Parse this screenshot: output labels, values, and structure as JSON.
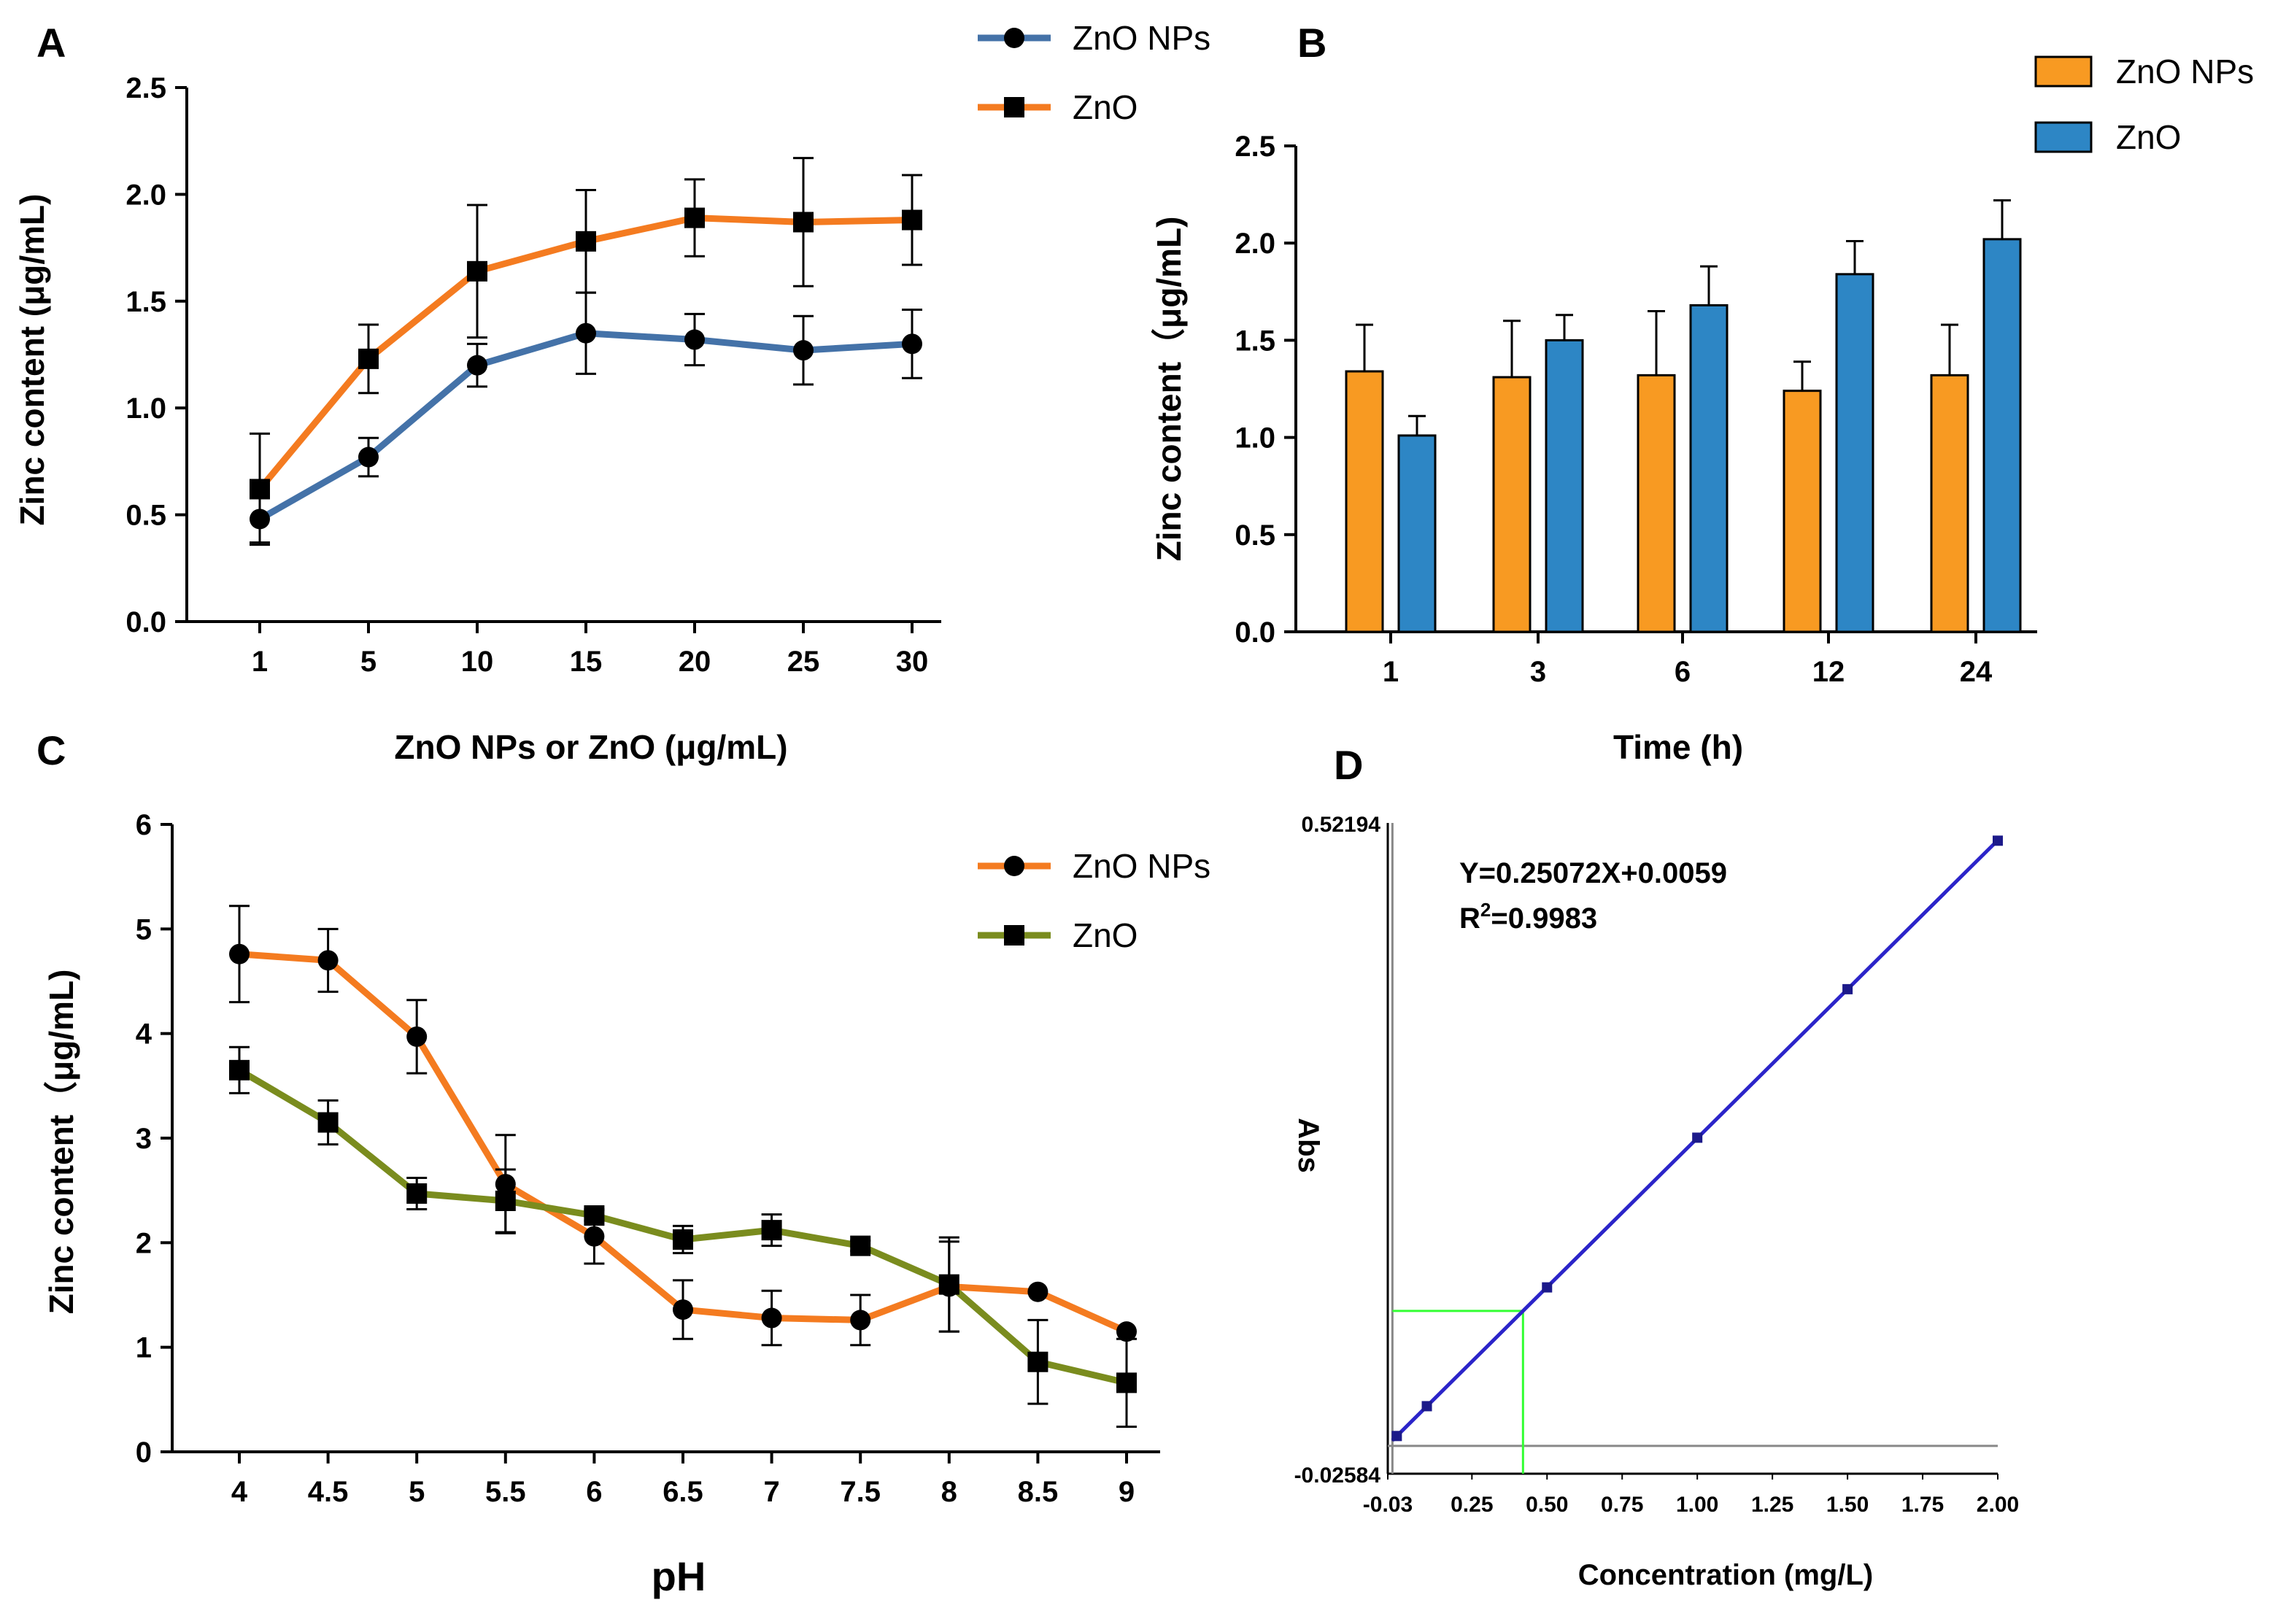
{
  "panels": {
    "A": "A",
    "B": "B",
    "C": "C",
    "D": "D"
  },
  "chart_data": [
    {
      "id": "A",
      "type": "line",
      "categories": [
        "1",
        "5",
        "10",
        "15",
        "20",
        "25",
        "30"
      ],
      "series": [
        {
          "name": "ZnO NPs",
          "color": "#4472a8",
          "marker": "circle",
          "values": [
            0.48,
            0.77,
            1.2,
            1.35,
            1.32,
            1.27,
            1.3
          ],
          "errors": [
            0.11,
            0.09,
            0.1,
            0.19,
            0.12,
            0.16,
            0.16
          ]
        },
        {
          "name": "ZnO",
          "color": "#f47b20",
          "marker": "square",
          "values": [
            0.62,
            1.23,
            1.64,
            1.78,
            1.89,
            1.87,
            1.88
          ],
          "errors": [
            0.26,
            0.16,
            0.31,
            0.24,
            0.18,
            0.3,
            0.21
          ]
        }
      ],
      "xlabel": "ZnO NPs or ZnO (μg/mL)",
      "ylabel": "Zinc content (μg/mL)",
      "ylim": [
        0,
        2.5
      ],
      "yticks": [
        "0.0",
        "0.5",
        "1.0",
        "1.5",
        "2.0",
        "2.5"
      ],
      "legend": "top-right outside"
    },
    {
      "id": "B",
      "type": "bar",
      "categories": [
        "1",
        "3",
        "6",
        "12",
        "24"
      ],
      "series": [
        {
          "name": "ZnO NPs",
          "color": "#f89a22",
          "values": [
            1.34,
            1.31,
            1.32,
            1.24,
            1.32
          ],
          "errors": [
            0.24,
            0.29,
            0.33,
            0.15,
            0.26
          ]
        },
        {
          "name": "ZnO",
          "color": "#2d86c5",
          "values": [
            1.01,
            1.5,
            1.68,
            1.84,
            2.02
          ],
          "errors": [
            0.1,
            0.13,
            0.2,
            0.17,
            0.2
          ]
        }
      ],
      "xlabel": "Time (h)",
      "ylabel": "Zinc content（μg/mL)",
      "ylim": [
        0,
        2.5
      ],
      "yticks": [
        "0.0",
        "0.5",
        "1.0",
        "1.5",
        "2.0",
        "2.5"
      ],
      "legend": "top-right"
    },
    {
      "id": "C",
      "type": "line",
      "categories": [
        "4",
        "4.5",
        "5",
        "5.5",
        "6",
        "6.5",
        "7",
        "7.5",
        "8",
        "8.5",
        "9"
      ],
      "series": [
        {
          "name": "ZnO NPs",
          "color": "#f47b20",
          "marker": "circle",
          "values": [
            4.76,
            4.7,
            3.97,
            2.56,
            2.06,
            1.36,
            1.28,
            1.26,
            1.58,
            1.53,
            1.15
          ],
          "errors": [
            0.46,
            0.3,
            0.35,
            0.47,
            0.26,
            0.28,
            0.26,
            0.24,
            0.43,
            0,
            0
          ]
        },
        {
          "name": "ZnO",
          "color": "#7a8c1e",
          "marker": "square",
          "values": [
            3.65,
            3.15,
            2.47,
            2.4,
            2.26,
            2.03,
            2.12,
            1.97,
            1.6,
            0.86,
            0.66
          ],
          "errors": [
            0.22,
            0.21,
            0.15,
            0.3,
            0.05,
            0.13,
            0.15,
            0.05,
            0.45,
            0.4,
            0.42
          ]
        }
      ],
      "xlabel": "pH",
      "ylabel": "Zinc content（μg/mL)",
      "ylim": [
        0,
        6
      ],
      "yticks": [
        "0",
        "1",
        "2",
        "3",
        "4",
        "5",
        "6"
      ],
      "legend": "top-right"
    },
    {
      "id": "D",
      "type": "scatter",
      "xlim": [
        -0.03,
        2.0
      ],
      "ylim": [
        -0.02584,
        0.52194
      ],
      "xticks": [
        "-0.03",
        "0.25",
        "0.50",
        "0.75",
        "1.00",
        "1.25",
        "1.50",
        "1.75",
        "2.00"
      ],
      "xtick_values": [
        -0.03,
        0.25,
        0.5,
        0.75,
        1.0,
        1.25,
        1.5,
        1.75,
        2.0
      ],
      "yticks": [
        "0.52194",
        "-0.02584"
      ],
      "points": [
        {
          "x": 0,
          "y": 0.0059
        },
        {
          "x": 0.1,
          "y": 0.031
        },
        {
          "x": 0.5,
          "y": 0.131
        },
        {
          "x": 1.0,
          "y": 0.257
        },
        {
          "x": 1.5,
          "y": 0.382
        },
        {
          "x": 2.0,
          "y": 0.507
        }
      ],
      "fit": {
        "slope": 0.25072,
        "intercept": 0.0059,
        "color": "#2b24c9"
      },
      "equation": "Y=0.25072X+0.0059",
      "r2_prefix": "R",
      "r2_sup": "2",
      "r2_value": "=0.9983",
      "marker_line": {
        "x": 0.42,
        "y": 0.1112,
        "color": "#33ff33"
      },
      "xlabel": "Concentration (mg/L)",
      "ylabel": "Abs"
    }
  ]
}
